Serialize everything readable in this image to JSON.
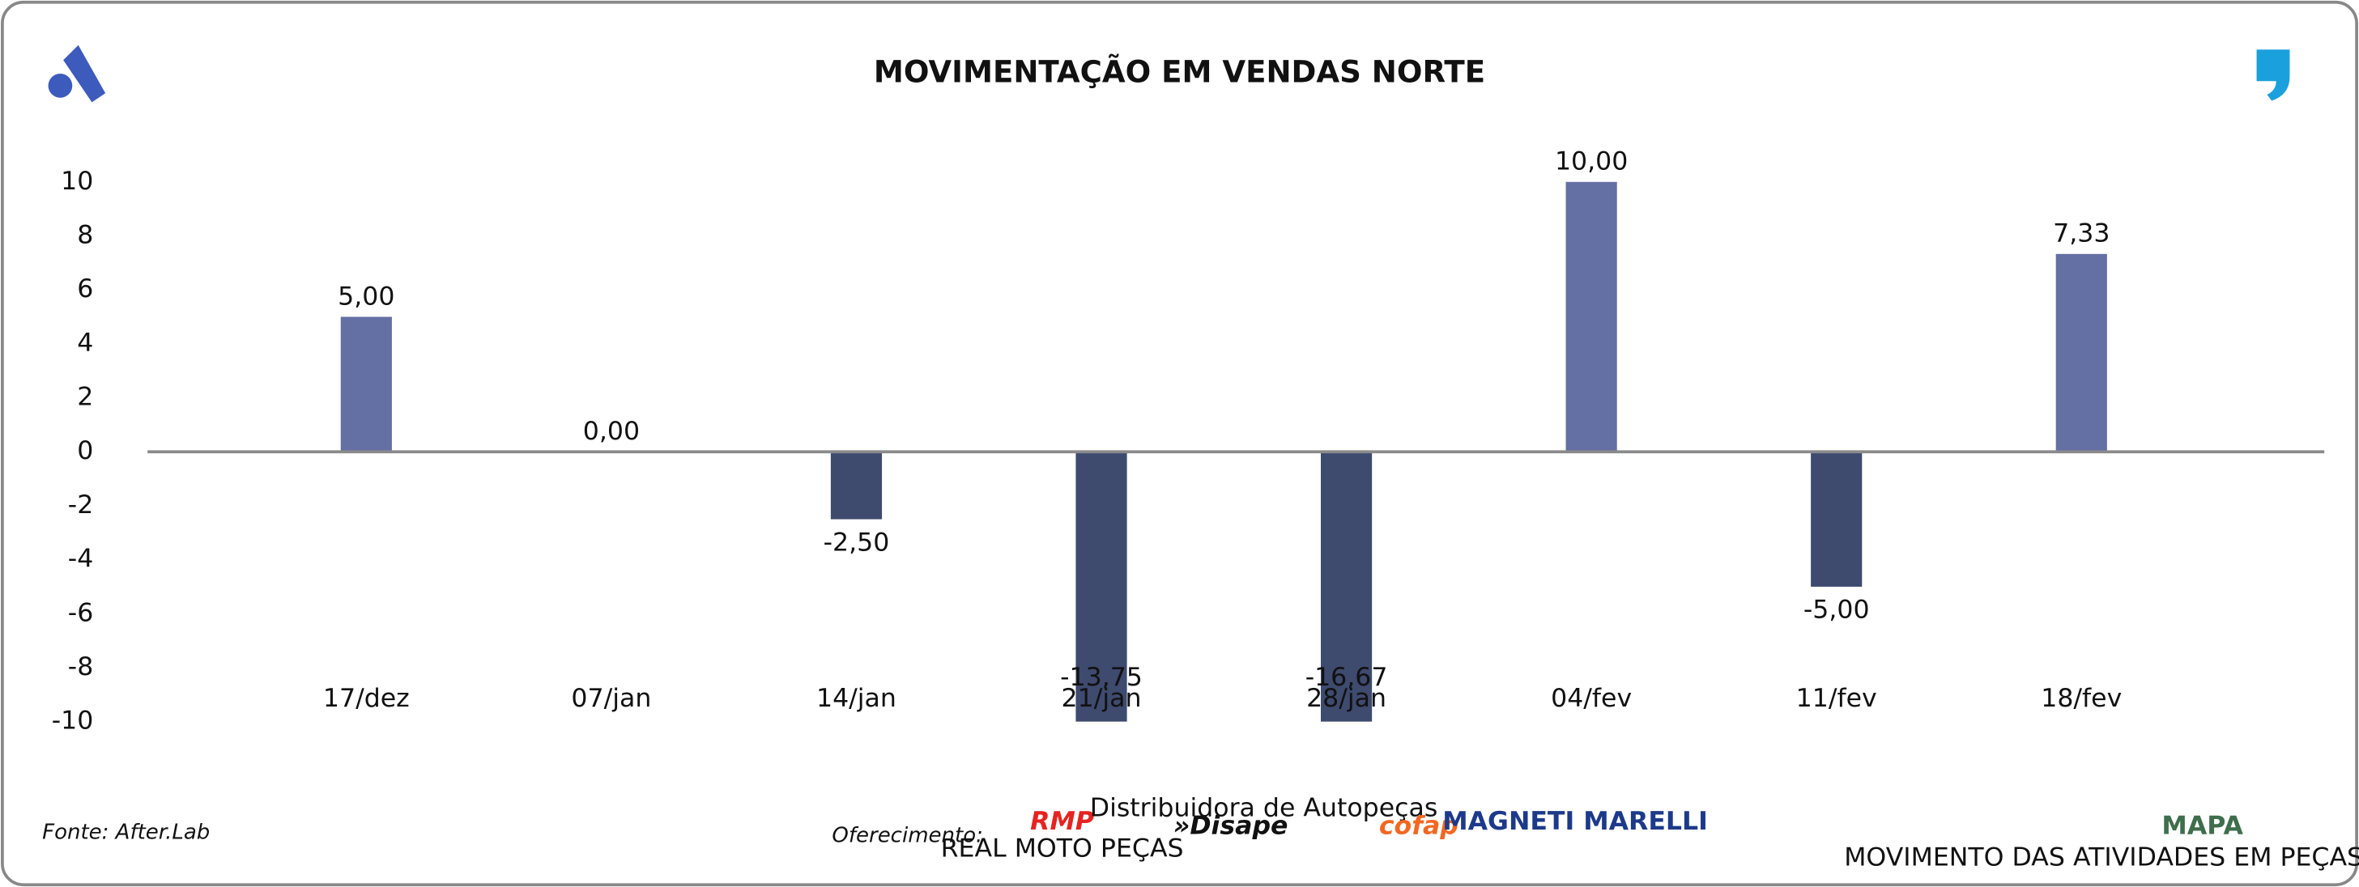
{
  "chart_data": {
    "type": "bar",
    "title": "MOVIMENTAÇÃO EM VENDAS NORTE",
    "categories": [
      "17/dez",
      "07/jan",
      "14/jan",
      "21/jan",
      "28/jan",
      "04/fev",
      "11/fev",
      "18/fev"
    ],
    "series": [
      {
        "values": [
          5,
          0,
          -2.5,
          -13.75,
          -16.67,
          10,
          -5,
          7.33
        ],
        "value_labels": [
          "5,00",
          "0,00",
          "-2,50",
          "-13,75",
          "-16,67",
          "10,00",
          "-5,00",
          "7,33"
        ],
        "color": "#646fa3",
        "negative_color": "#3e4a6e"
      }
    ],
    "ylim": [
      -10,
      10
    ],
    "yticks": [
      10,
      8,
      6,
      4,
      2,
      0,
      -2,
      -4,
      -6,
      -8,
      -10
    ],
    "grid": false
  },
  "footer": {
    "source": "Fonte: After.Lab",
    "sponsor_label": "Oferecimento:",
    "sponsors": [
      {
        "name": "RMP",
        "tagline": "REAL MOTO PEÇAS"
      },
      {
        "name": "»Disape",
        "tagline": "Distribuidora de Autopeças"
      },
      {
        "name": "cofap"
      },
      {
        "name": "MAGNETI MARELLI"
      }
    ],
    "brand": {
      "name": "MAPA",
      "tagline": "MOVIMENTO DAS ATIVIDADES EM PEÇAS E ACESSÓRIOS"
    }
  }
}
